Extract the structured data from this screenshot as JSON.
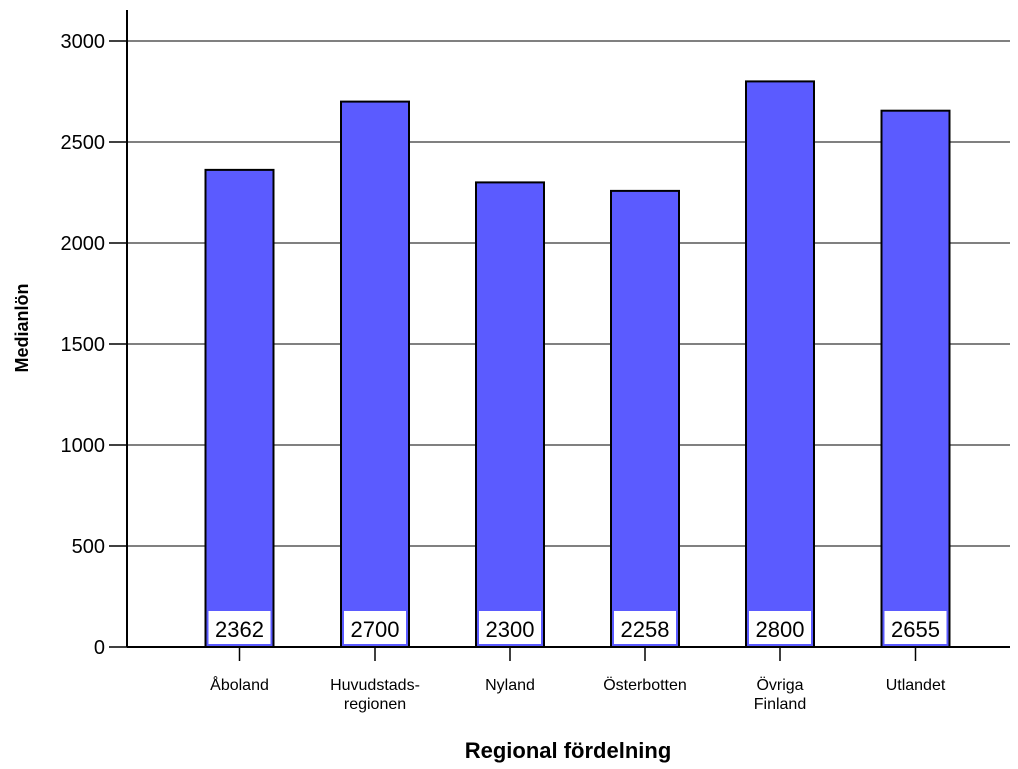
{
  "chart_data": {
    "type": "bar",
    "categories": [
      [
        "Åboland"
      ],
      [
        "Huvudstads-",
        "regionen"
      ],
      [
        "Nyland"
      ],
      [
        "Österbotten"
      ],
      [
        "Övriga",
        "Finland"
      ],
      [
        "Utlandet"
      ]
    ],
    "values": [
      2362,
      2700,
      2300,
      2258,
      2800,
      2655
    ],
    "value_labels": [
      "2362",
      "2700",
      "2300",
      "2258",
      "2800",
      "2655"
    ],
    "xlabel": "Regional fördelning",
    "ylabel": "Medianlön",
    "ylim": [
      0,
      3000
    ],
    "yticks": [
      0,
      500,
      1000,
      1500,
      2000,
      2500,
      3000
    ],
    "grid": true,
    "bar_color": "#5b5bff",
    "label_box_color": "#ffffff"
  }
}
